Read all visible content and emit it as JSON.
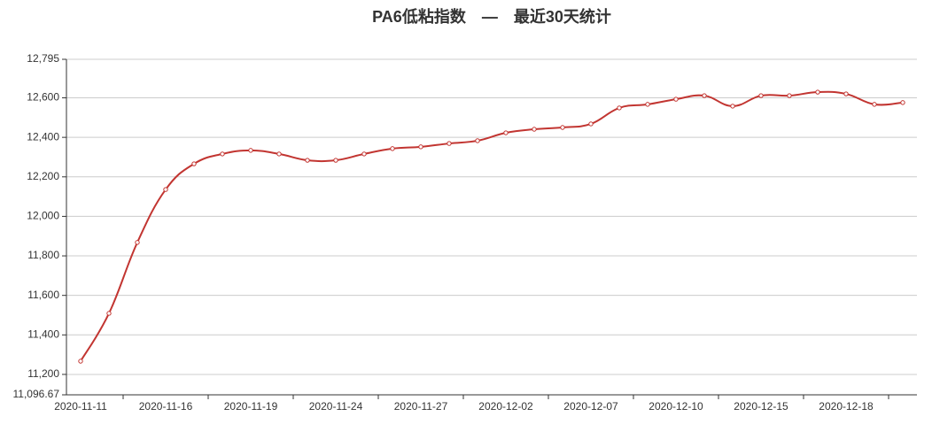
{
  "chart_data": {
    "type": "line",
    "title": "PA6低粘指数　—　最近30天统计",
    "categories": [
      "2020-11-11",
      null,
      null,
      "2020-11-16",
      null,
      null,
      "2020-11-19",
      null,
      null,
      "2020-11-24",
      null,
      null,
      "2020-11-27",
      null,
      null,
      "2020-12-02",
      null,
      null,
      "2020-12-07",
      null,
      null,
      "2020-12-10",
      null,
      null,
      "2020-12-15",
      null,
      null,
      "2020-12-18",
      null,
      null
    ],
    "values": [
      11267,
      11509,
      11868,
      12136,
      12266,
      12316,
      12334,
      12316,
      12284,
      12284,
      12316,
      12343,
      12352,
      12369,
      12383,
      12423,
      12441,
      12450,
      12468,
      12549,
      12567,
      12593,
      12611,
      12558,
      12611,
      12611,
      12629,
      12620,
      12567,
      12576
    ],
    "color": "#c23531",
    "ylim": [
      11096.67,
      12795
    ],
    "yticks": [
      {
        "value": 11096.67,
        "label": "11,096.67"
      },
      {
        "value": 11200,
        "label": "11,200"
      },
      {
        "value": 11400,
        "label": "11,400"
      },
      {
        "value": 11600,
        "label": "11,600"
      },
      {
        "value": 11800,
        "label": "11,800"
      },
      {
        "value": 12000,
        "label": "12,000"
      },
      {
        "value": 12200,
        "label": "12,200"
      },
      {
        "value": 12400,
        "label": "12,400"
      },
      {
        "value": 12600,
        "label": "12,600"
      },
      {
        "value": 12795,
        "label": "12,795"
      }
    ],
    "grid": true
  }
}
